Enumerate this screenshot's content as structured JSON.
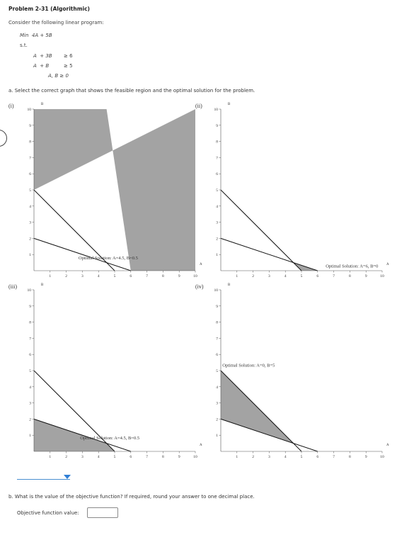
{
  "problem_title": "Problem 2-31 (Algorithmic)",
  "intro": "Consider the following linear program:",
  "lp": {
    "objective": "Min  4A + 5B",
    "st": "s.t.",
    "c1_lhs": "A  + 3B",
    "c1_rhs": "≥ 6",
    "c2_lhs": "A  + B",
    "c2_rhs": "≥ 5",
    "nonneg": "A, B ≥ 0"
  },
  "question_a": "a. Select the correct graph that shows the feasible region and the optimal solution for the problem.",
  "graphs": [
    {
      "label": "(i)",
      "solution_text": "Optimal Solution: A=4.5, B=0.5",
      "x_axis_label": "A",
      "y_axis_label": "B"
    },
    {
      "label": "(ii)",
      "solution_text": "Optimal Solution: A=6, B=0",
      "x_axis_label": "A",
      "y_axis_label": "B"
    },
    {
      "label": "(iii)",
      "solution_text": "Optimal Solution: A=4.5, B=0.5",
      "x_axis_label": "A",
      "y_axis_label": "B"
    },
    {
      "label": "(iv)",
      "solution_text": "Optimal Solution: A=0, B=5",
      "x_axis_label": "A",
      "y_axis_label": "B"
    }
  ],
  "tick_values": [
    "1",
    "2",
    "3",
    "4",
    "5",
    "6",
    "7",
    "8",
    "9",
    "10"
  ],
  "dropdown": {
    "selected": ""
  },
  "question_b": "b. What is the value of the objective function? If required, round your answer to one decimal place.",
  "objective_label": "Objective function value:",
  "objective_value": "",
  "chart_data": [
    {
      "type": "area",
      "title": "(i)",
      "xlabel": "A",
      "ylabel": "B",
      "xlim": [
        0,
        10
      ],
      "ylim": [
        0,
        10
      ],
      "lines": [
        {
          "name": "",
          "x": [
            0,
            6
          ],
          "y": [
            2,
            0
          ]
        },
        {
          "name": "",
          "x": [
            0,
            5
          ],
          "y": [
            5,
            0
          ]
        }
      ],
      "shaded_region": {
        "x": [
          0,
          0,
          4.5,
          6,
          10,
          10
        ],
        "y": [
          5,
          10,
          10,
          0,
          0,
          10
        ]
      },
      "optimal": {
        "x": 4.5,
        "y": 0.5
      }
    },
    {
      "type": "area",
      "title": "(ii)",
      "xlabel": "A",
      "ylabel": "B",
      "xlim": [
        0,
        10
      ],
      "ylim": [
        0,
        10
      ],
      "lines": [
        {
          "name": "",
          "x": [
            0,
            6
          ],
          "y": [
            2,
            0
          ]
        },
        {
          "name": "",
          "x": [
            0,
            5
          ],
          "y": [
            5,
            0
          ]
        }
      ],
      "shaded_region": {
        "x": [
          4.5,
          6,
          5
        ],
        "y": [
          0.5,
          0,
          0
        ]
      },
      "optimal": {
        "x": 6,
        "y": 0
      }
    },
    {
      "type": "area",
      "title": "(iii)",
      "xlabel": "A",
      "ylabel": "B",
      "xlim": [
        0,
        10
      ],
      "ylim": [
        0,
        10
      ],
      "lines": [
        {
          "name": "",
          "x": [
            0,
            6
          ],
          "y": [
            2,
            0
          ]
        },
        {
          "name": "",
          "x": [
            0,
            5
          ],
          "y": [
            5,
            0
          ]
        }
      ],
      "shaded_region": {
        "x": [
          0,
          4.5,
          5,
          0
        ],
        "y": [
          2,
          0.5,
          0,
          0
        ]
      },
      "optimal": {
        "x": 4.5,
        "y": 0.5
      }
    },
    {
      "type": "area",
      "title": "(iv)",
      "xlabel": "A",
      "ylabel": "B",
      "xlim": [
        0,
        10
      ],
      "ylim": [
        0,
        10
      ],
      "lines": [
        {
          "name": "",
          "x": [
            0,
            6
          ],
          "y": [
            2,
            0
          ]
        },
        {
          "name": "",
          "x": [
            0,
            5
          ],
          "y": [
            5,
            0
          ]
        }
      ],
      "shaded_region": {
        "x": [
          0,
          4.5,
          0
        ],
        "y": [
          5,
          0.5,
          2
        ]
      },
      "optimal": {
        "x": 0,
        "y": 5
      }
    }
  ]
}
